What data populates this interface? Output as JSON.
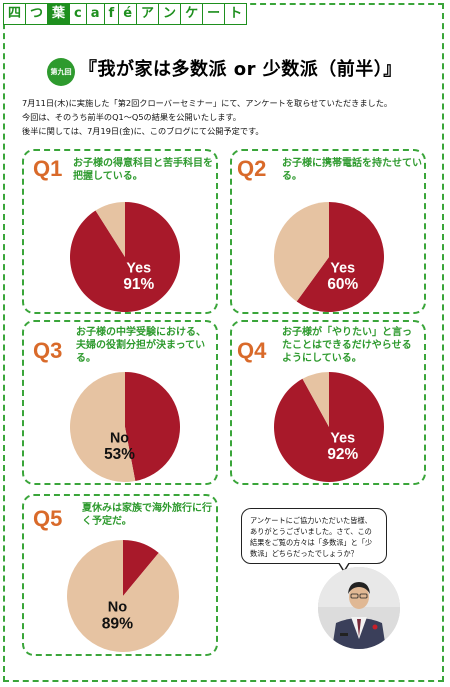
{
  "brand": {
    "parts": [
      "四",
      "つ",
      "葉",
      "c",
      "a",
      "f",
      "é",
      "ア",
      "ン",
      "ケ",
      "ー",
      "ト"
    ]
  },
  "header": {
    "badge": "第九回",
    "title": "『我が家は多数派 or 少数派（前半）』"
  },
  "intro": [
    "7月11日(木)に実施した「第2回クローバーセミナー」にて、アンケートを取らせていただきました。",
    "今回は、そのうち前半のQ1～Q5の結果を公開いたします。",
    "後半に関しては、7月19日(金)に、このブログにて公開予定です。"
  ],
  "colors": {
    "yes": "#a8192a",
    "no": "#e6c3a2",
    "green": "#2e9a2e",
    "orange": "#d96a2a"
  },
  "chart_data": [
    {
      "type": "pie",
      "id": "Q1",
      "question": [
        "お子様の得意科目と苦手科目を",
        "把握している。"
      ],
      "slices": [
        {
          "label": "Yes",
          "value": 91
        },
        {
          "label": "No",
          "value": 9
        }
      ],
      "shown_label": "Yes",
      "shown_value": "91%"
    },
    {
      "type": "pie",
      "id": "Q2",
      "question": [
        "お子様に携帯電話を持たせてい",
        "る。"
      ],
      "slices": [
        {
          "label": "Yes",
          "value": 60
        },
        {
          "label": "No",
          "value": 40
        }
      ],
      "shown_label": "Yes",
      "shown_value": "60%"
    },
    {
      "type": "pie",
      "id": "Q3",
      "question": [
        "お子様の中学受験における、",
        "夫婦の役割分担が決まってい",
        "る。"
      ],
      "slices": [
        {
          "label": "Yes",
          "value": 47
        },
        {
          "label": "No",
          "value": 53
        }
      ],
      "shown_label": "No",
      "shown_value": "53%"
    },
    {
      "type": "pie",
      "id": "Q4",
      "question": [
        "お子様が「やりたい」と言っ",
        "たことはできるだけやらせる",
        "ようにしている。"
      ],
      "slices": [
        {
          "label": "Yes",
          "value": 92
        },
        {
          "label": "No",
          "value": 8
        }
      ],
      "shown_label": "Yes",
      "shown_value": "92%"
    },
    {
      "type": "pie",
      "id": "Q5",
      "question": [
        "夏休みは家族で海外旅行に行",
        "く予定だ。"
      ],
      "slices": [
        {
          "label": "Yes",
          "value": 11
        },
        {
          "label": "No",
          "value": 89
        }
      ],
      "shown_label": "No",
      "shown_value": "89%"
    }
  ],
  "bubble": [
    "アンケートにご協力いただいた皆様、",
    "ありがとうございました。さて、この",
    "結果をご覧の方々は「多数派」と「少",
    "数派」どちらだったでしょうか？"
  ]
}
